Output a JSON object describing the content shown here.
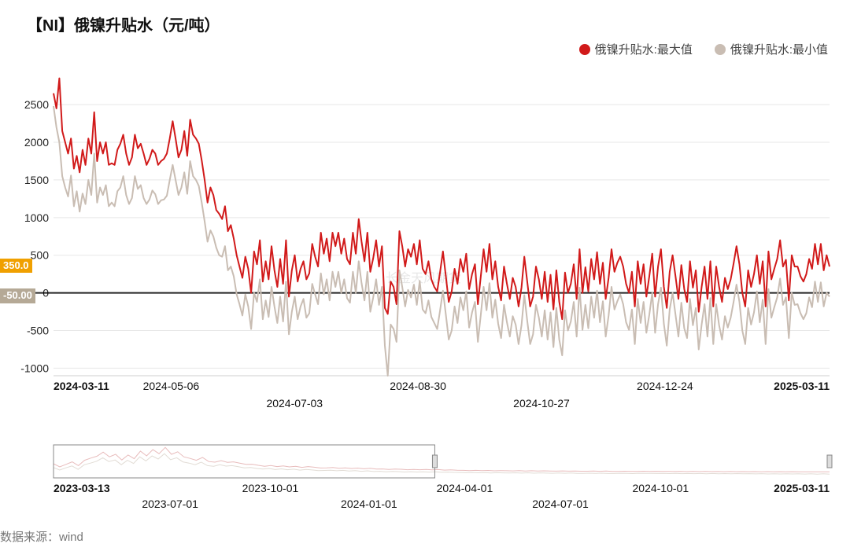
{
  "title": "【NI】俄镍升贴水（元/吨）",
  "legend": [
    {
      "label": "俄镍升贴水:最大值",
      "color": "#d11a1a"
    },
    {
      "label": "俄镍升贴水:最小值",
      "color": "#c9bdb3"
    }
  ],
  "watermark": "长金天风期货",
  "footer": "数据来源：wind",
  "main_chart": {
    "ylim": [
      -1100,
      2950
    ],
    "yticks": [
      -1000,
      -500,
      0,
      500,
      1000,
      1500,
      2000,
      2500
    ],
    "y_axis_fontsize": 14,
    "zero_line_color": "#000000",
    "zero_line_width": 2,
    "grid_color": "#e7e7e7",
    "border_color": "#cfcfcf",
    "background": "#ffffff",
    "line_width": 2,
    "xlim": [
      0,
      264
    ],
    "xticks": [
      {
        "pos": 0,
        "label": "2024-03-11",
        "bold": true,
        "row": 0
      },
      {
        "pos": 40,
        "label": "2024-05-06",
        "bold": false,
        "row": 0
      },
      {
        "pos": 82,
        "label": "2024-07-03",
        "bold": false,
        "row": 1
      },
      {
        "pos": 124,
        "label": "2024-08-30",
        "bold": false,
        "row": 0
      },
      {
        "pos": 166,
        "label": "2024-10-27",
        "bold": false,
        "row": 1
      },
      {
        "pos": 208,
        "label": "2024-12-24",
        "bold": false,
        "row": 0
      },
      {
        "pos": 264,
        "label": "2025-03-11",
        "bold": true,
        "row": 0
      }
    ],
    "last_markers": [
      {
        "value": 350.0,
        "label": "350.0",
        "bg": "#f0a000"
      },
      {
        "value": -50.0,
        "label": "-50.00",
        "bg": "#b5a996"
      }
    ],
    "series": [
      {
        "name": "max",
        "color": "#d11a1a",
        "values": [
          2650,
          2450,
          2850,
          2150,
          2000,
          1850,
          2050,
          1650,
          1820,
          1600,
          1900,
          1700,
          2050,
          1850,
          2400,
          1750,
          2000,
          1850,
          2000,
          1700,
          1720,
          1700,
          1900,
          1980,
          2100,
          1850,
          1700,
          1800,
          2100,
          1920,
          1980,
          1850,
          1700,
          1780,
          1900,
          1850,
          1700,
          1750,
          1780,
          1850,
          2050,
          2280,
          2050,
          1800,
          1900,
          2150,
          1820,
          2300,
          2100,
          2050,
          1980,
          1760,
          1500,
          1200,
          1400,
          1300,
          1100,
          1050,
          980,
          1150,
          820,
          900,
          720,
          500,
          350,
          200,
          480,
          320,
          0,
          550,
          380,
          700,
          150,
          420,
          180,
          620,
          300,
          80,
          450,
          120,
          700,
          -50,
          300,
          500,
          150,
          320,
          420,
          180,
          260,
          650,
          480,
          350,
          800,
          520,
          720,
          420,
          800,
          620,
          800,
          520,
          720,
          450,
          380,
          800,
          520,
          980,
          680,
          420,
          800,
          280,
          460,
          700,
          350,
          620,
          -200,
          -280,
          150,
          80,
          -150,
          820,
          620,
          350,
          580,
          480,
          650,
          380,
          700,
          320,
          250,
          420,
          180,
          80,
          20,
          280,
          550,
          220,
          -120,
          20,
          320,
          120,
          450,
          280,
          520,
          50,
          250,
          380,
          -150,
          220,
          580,
          280,
          650,
          180,
          420,
          80,
          -100,
          350,
          120,
          -80,
          200,
          80,
          -180,
          70,
          480,
          150,
          -180,
          -50,
          350,
          180,
          -80,
          280,
          -120,
          240,
          -220,
          300,
          -120,
          -350,
          270,
          0,
          120,
          380,
          -80,
          580,
          0,
          340,
          20,
          450,
          180,
          540,
          120,
          400,
          -80,
          200,
          580,
          280,
          400,
          480,
          350,
          120,
          0,
          280,
          -180,
          420,
          120,
          380,
          -50,
          220,
          520,
          -50,
          350,
          580,
          80,
          -200,
          280,
          500,
          220,
          -80,
          370,
          50,
          -120,
          420,
          70,
          300,
          -250,
          80,
          350,
          -80,
          420,
          -180,
          350,
          80,
          -120,
          200,
          50,
          180,
          390,
          620,
          380,
          0,
          -180,
          300,
          80,
          250,
          500,
          120,
          420,
          -180,
          550,
          180,
          320,
          450,
          700,
          350,
          440,
          -100,
          500,
          350,
          350,
          220,
          150,
          250,
          450,
          320,
          650,
          380,
          650,
          300,
          500,
          350
        ]
      },
      {
        "name": "min",
        "color": "#c9bdb3",
        "values": [
          2480,
          2200,
          2000,
          1550,
          1400,
          1280,
          1560,
          1150,
          1350,
          1080,
          1320,
          1180,
          1500,
          1300,
          1850,
          1200,
          1400,
          1300,
          1430,
          1150,
          1200,
          1150,
          1350,
          1400,
          1550,
          1300,
          1180,
          1260,
          1550,
          1380,
          1430,
          1260,
          1180,
          1240,
          1360,
          1310,
          1180,
          1230,
          1240,
          1290,
          1500,
          1700,
          1500,
          1300,
          1400,
          1600,
          1315,
          1750,
          1550,
          1500,
          1420,
          1200,
          950,
          680,
          830,
          750,
          600,
          500,
          480,
          620,
          300,
          350,
          220,
          -20,
          -150,
          -300,
          -20,
          -180,
          -480,
          0,
          -120,
          180,
          -350,
          -100,
          -320,
          80,
          -180,
          -400,
          -50,
          -380,
          150,
          -550,
          -250,
          -50,
          -350,
          -180,
          -80,
          -330,
          -270,
          120,
          -20,
          -150,
          260,
          -20,
          180,
          -100,
          280,
          80,
          280,
          0,
          180,
          -70,
          -130,
          280,
          0,
          420,
          130,
          -100,
          280,
          -250,
          -60,
          180,
          -160,
          80,
          -700,
          -1100,
          -420,
          -480,
          -650,
          300,
          80,
          -180,
          40,
          -60,
          110,
          -160,
          160,
          -220,
          -270,
          -100,
          -320,
          -400,
          -480,
          -230,
          30,
          -290,
          -620,
          -500,
          -180,
          -400,
          -60,
          -230,
          20,
          -460,
          -260,
          -120,
          -650,
          -290,
          80,
          -230,
          130,
          -330,
          -90,
          -410,
          -600,
          -160,
          -390,
          -580,
          -310,
          -420,
          -680,
          -430,
          -30,
          -370,
          -680,
          -550,
          -160,
          -330,
          -580,
          -230,
          -620,
          -260,
          -720,
          -200,
          -620,
          -830,
          -230,
          -500,
          -380,
          -120,
          -580,
          70,
          -490,
          -160,
          -470,
          -50,
          -330,
          30,
          -390,
          -110,
          -580,
          -300,
          80,
          -220,
          -110,
          -20,
          -150,
          -390,
          -490,
          -220,
          -680,
          -80,
          -400,
          -120,
          -530,
          -290,
          0,
          -530,
          -150,
          70,
          -410,
          -700,
          -220,
          0,
          -290,
          -580,
          -130,
          -470,
          -600,
          -80,
          -430,
          -200,
          -750,
          -420,
          -150,
          -580,
          -70,
          -680,
          -150,
          -430,
          -620,
          -310,
          -460,
          -330,
          -120,
          110,
          -120,
          -500,
          -680,
          -200,
          -420,
          -260,
          20,
          -390,
          -90,
          -680,
          50,
          -330,
          -190,
          -60,
          190,
          -160,
          -60,
          -600,
          0,
          -160,
          -150,
          -270,
          -350,
          -270,
          -60,
          -190,
          150,
          -120,
          140,
          -180,
          0,
          -50
        ]
      }
    ]
  },
  "nav_chart": {
    "ylim": [
      -1500,
      9000
    ],
    "border_color": "#888",
    "window_color": "#888",
    "line_width": 1,
    "xlim": [
      0,
      519
    ],
    "window": {
      "start": 255,
      "end": 519
    },
    "xticks": [
      {
        "pos": 0,
        "label": "2023-03-13",
        "bold": true,
        "row": 0
      },
      {
        "pos": 78,
        "label": "2023-07-01",
        "bold": false,
        "row": 1
      },
      {
        "pos": 145,
        "label": "2023-10-01",
        "bold": false,
        "row": 0
      },
      {
        "pos": 211,
        "label": "2024-01-01",
        "bold": false,
        "row": 1
      },
      {
        "pos": 275,
        "label": "2024-04-01",
        "bold": false,
        "row": 0
      },
      {
        "pos": 339,
        "label": "2024-07-01",
        "bold": false,
        "row": 1
      },
      {
        "pos": 406,
        "label": "2024-10-01",
        "bold": false,
        "row": 0
      },
      {
        "pos": 519,
        "label": "2025-03-11",
        "bold": true,
        "row": 0
      }
    ],
    "series_max_color": "#e8bcbc",
    "series_min_color": "#e2dcd5",
    "series_max": [
      3000,
      2000,
      2800,
      3600,
      2400,
      4100,
      4800,
      5400,
      6700,
      5200,
      6000,
      4200,
      5800,
      4600,
      7000,
      5500,
      7500,
      6200,
      8200,
      6000,
      6800,
      5200,
      4700,
      4100,
      5000,
      3700,
      3500,
      4000,
      3450,
      3600,
      3200,
      2800,
      2850,
      2500,
      2200,
      2450,
      2100,
      2300,
      2000,
      2200,
      1850,
      2100,
      1900,
      1650,
      1700,
      1800,
      1580,
      1700,
      1500,
      1620,
      1400,
      1580,
      1300,
      1350,
      1200,
      1300,
      1250,
      1100,
      1200,
      1100,
      1180,
      1050,
      1150,
      980,
      1050,
      950,
      900,
      820,
      900,
      800,
      870,
      750,
      830,
      780,
      720,
      800,
      700,
      780,
      680,
      760,
      700,
      660,
      720,
      640,
      700,
      630,
      620,
      680,
      600,
      670,
      580,
      550,
      620,
      580,
      540,
      620,
      560,
      600,
      540,
      580,
      520,
      560,
      510,
      550,
      500,
      540,
      490,
      530,
      480,
      520,
      480,
      500,
      470,
      490,
      450,
      490,
      440,
      470,
      430,
      470,
      420,
      460,
      420,
      440,
      420,
      450
    ],
    "series_min": [
      1800,
      1000,
      1700,
      2300,
      1200,
      2700,
      3200,
      3800,
      4900,
      3700,
      4200,
      2700,
      4100,
      3100,
      5200,
      3900,
      5500,
      4500,
      6200,
      4300,
      4900,
      3600,
      3200,
      2700,
      3500,
      2400,
      2200,
      2700,
      2250,
      2400,
      2050,
      1700,
      1820,
      1500,
      1300,
      1500,
      1160,
      1380,
      1100,
      1280,
      980,
      1200,
      1030,
      820,
      880,
      950,
      780,
      900,
      700,
      820,
      600,
      760,
      520,
      600,
      450,
      580,
      500,
      370,
      480,
      370,
      450,
      340,
      430,
      270,
      350,
      260,
      220,
      140,
      220,
      120,
      190,
      70,
      160,
      100,
      50,
      130,
      30,
      120,
      0,
      100,
      30,
      -20,
      70,
      -30,
      50,
      -50,
      -60,
      10,
      -70,
      -8,
      -90,
      -110,
      -30,
      -70,
      -120,
      -20,
      -70,
      -40,
      -110,
      -60,
      -130,
      -80,
      -140,
      -90,
      -160,
      -100,
      -170,
      -110,
      -180,
      -120,
      -200,
      -130,
      -210,
      -150,
      -220,
      -160,
      -240,
      -180,
      -250,
      -190,
      -260,
      -190,
      -280,
      -190,
      -300,
      -200,
      -310
    ]
  }
}
